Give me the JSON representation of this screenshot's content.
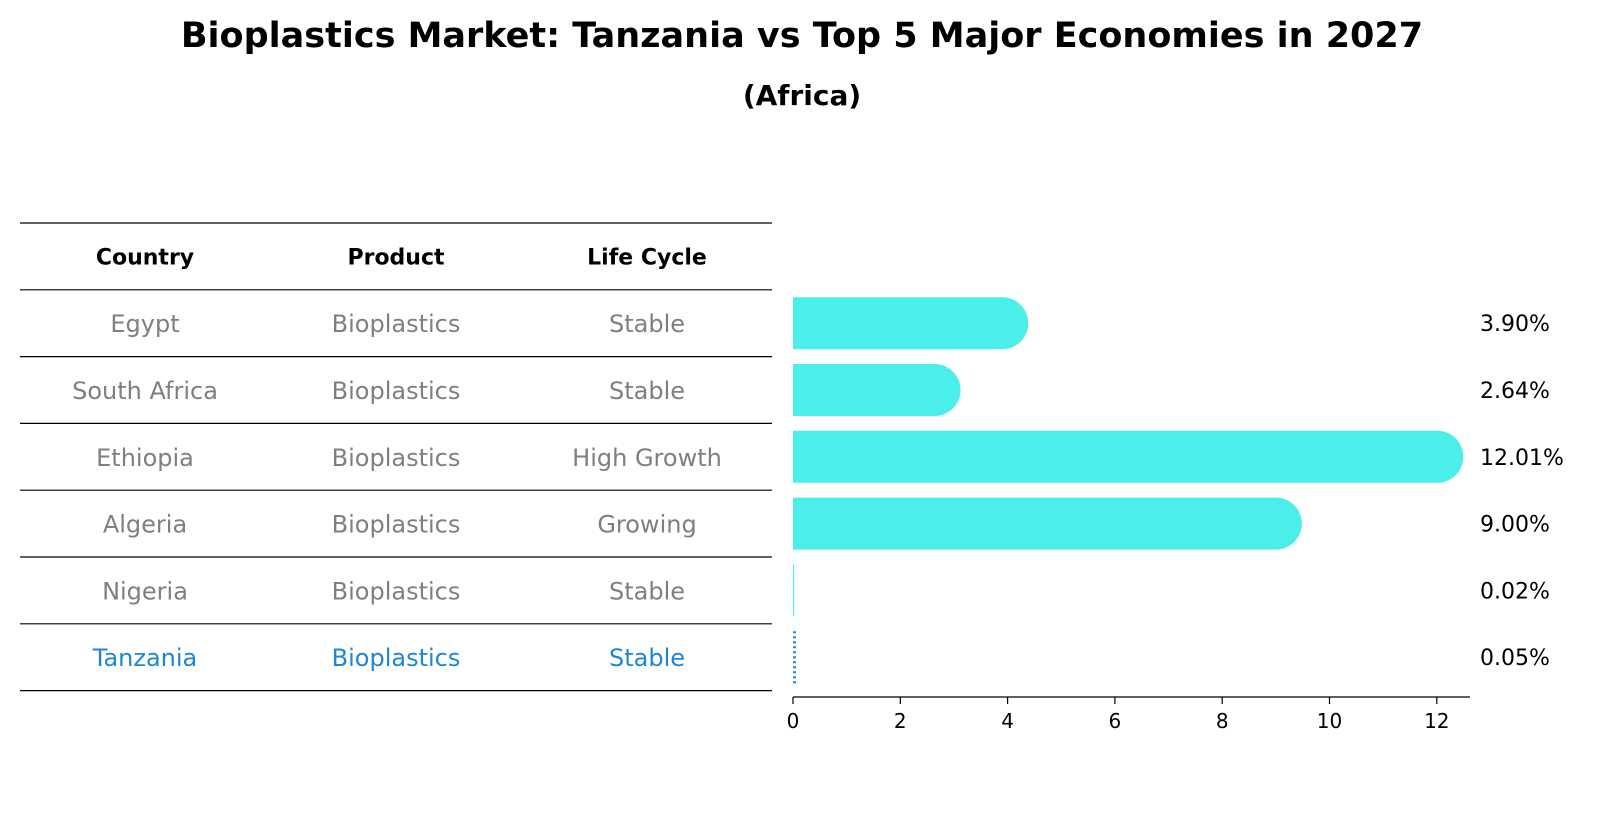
{
  "title": "Bioplastics Market: Tanzania vs Top 5 Major Economies in 2027",
  "subtitle": "(Africa)",
  "colors": {
    "bar": "#4ceeea",
    "highlight": "#1f86d4",
    "row_text": "#7f7f7f",
    "rule": "#000000"
  },
  "table": {
    "headers": [
      "Country",
      "Product",
      "Life Cycle"
    ],
    "rows": [
      {
        "country": "Egypt",
        "product": "Bioplastics",
        "life_cycle": "Stable",
        "highlight": false
      },
      {
        "country": "South Africa",
        "product": "Bioplastics",
        "life_cycle": "Stable",
        "highlight": false
      },
      {
        "country": "Ethiopia",
        "product": "Bioplastics",
        "life_cycle": "High Growth",
        "highlight": false
      },
      {
        "country": "Algeria",
        "product": "Bioplastics",
        "life_cycle": "Growing",
        "highlight": false
      },
      {
        "country": "Nigeria",
        "product": "Bioplastics",
        "life_cycle": "Stable",
        "highlight": false
      },
      {
        "country": "Tanzania",
        "product": "Bioplastics",
        "life_cycle": "Stable",
        "highlight": true
      }
    ]
  },
  "chart_data": {
    "type": "bar",
    "orientation": "horizontal",
    "categories": [
      "Egypt",
      "South Africa",
      "Ethiopia",
      "Algeria",
      "Nigeria",
      "Tanzania"
    ],
    "values": [
      3.9,
      2.64,
      12.01,
      9.0,
      0.02,
      0.05
    ],
    "value_labels": [
      "3.90%",
      "2.64%",
      "12.01%",
      "9.00%",
      "0.02%",
      "0.05%"
    ],
    "highlight_category": "Tanzania",
    "xlim": [
      0,
      12.6
    ],
    "xticks": [
      0,
      2,
      4,
      6,
      8,
      10,
      12
    ],
    "xlabel": "",
    "ylabel": "",
    "grid": false
  }
}
